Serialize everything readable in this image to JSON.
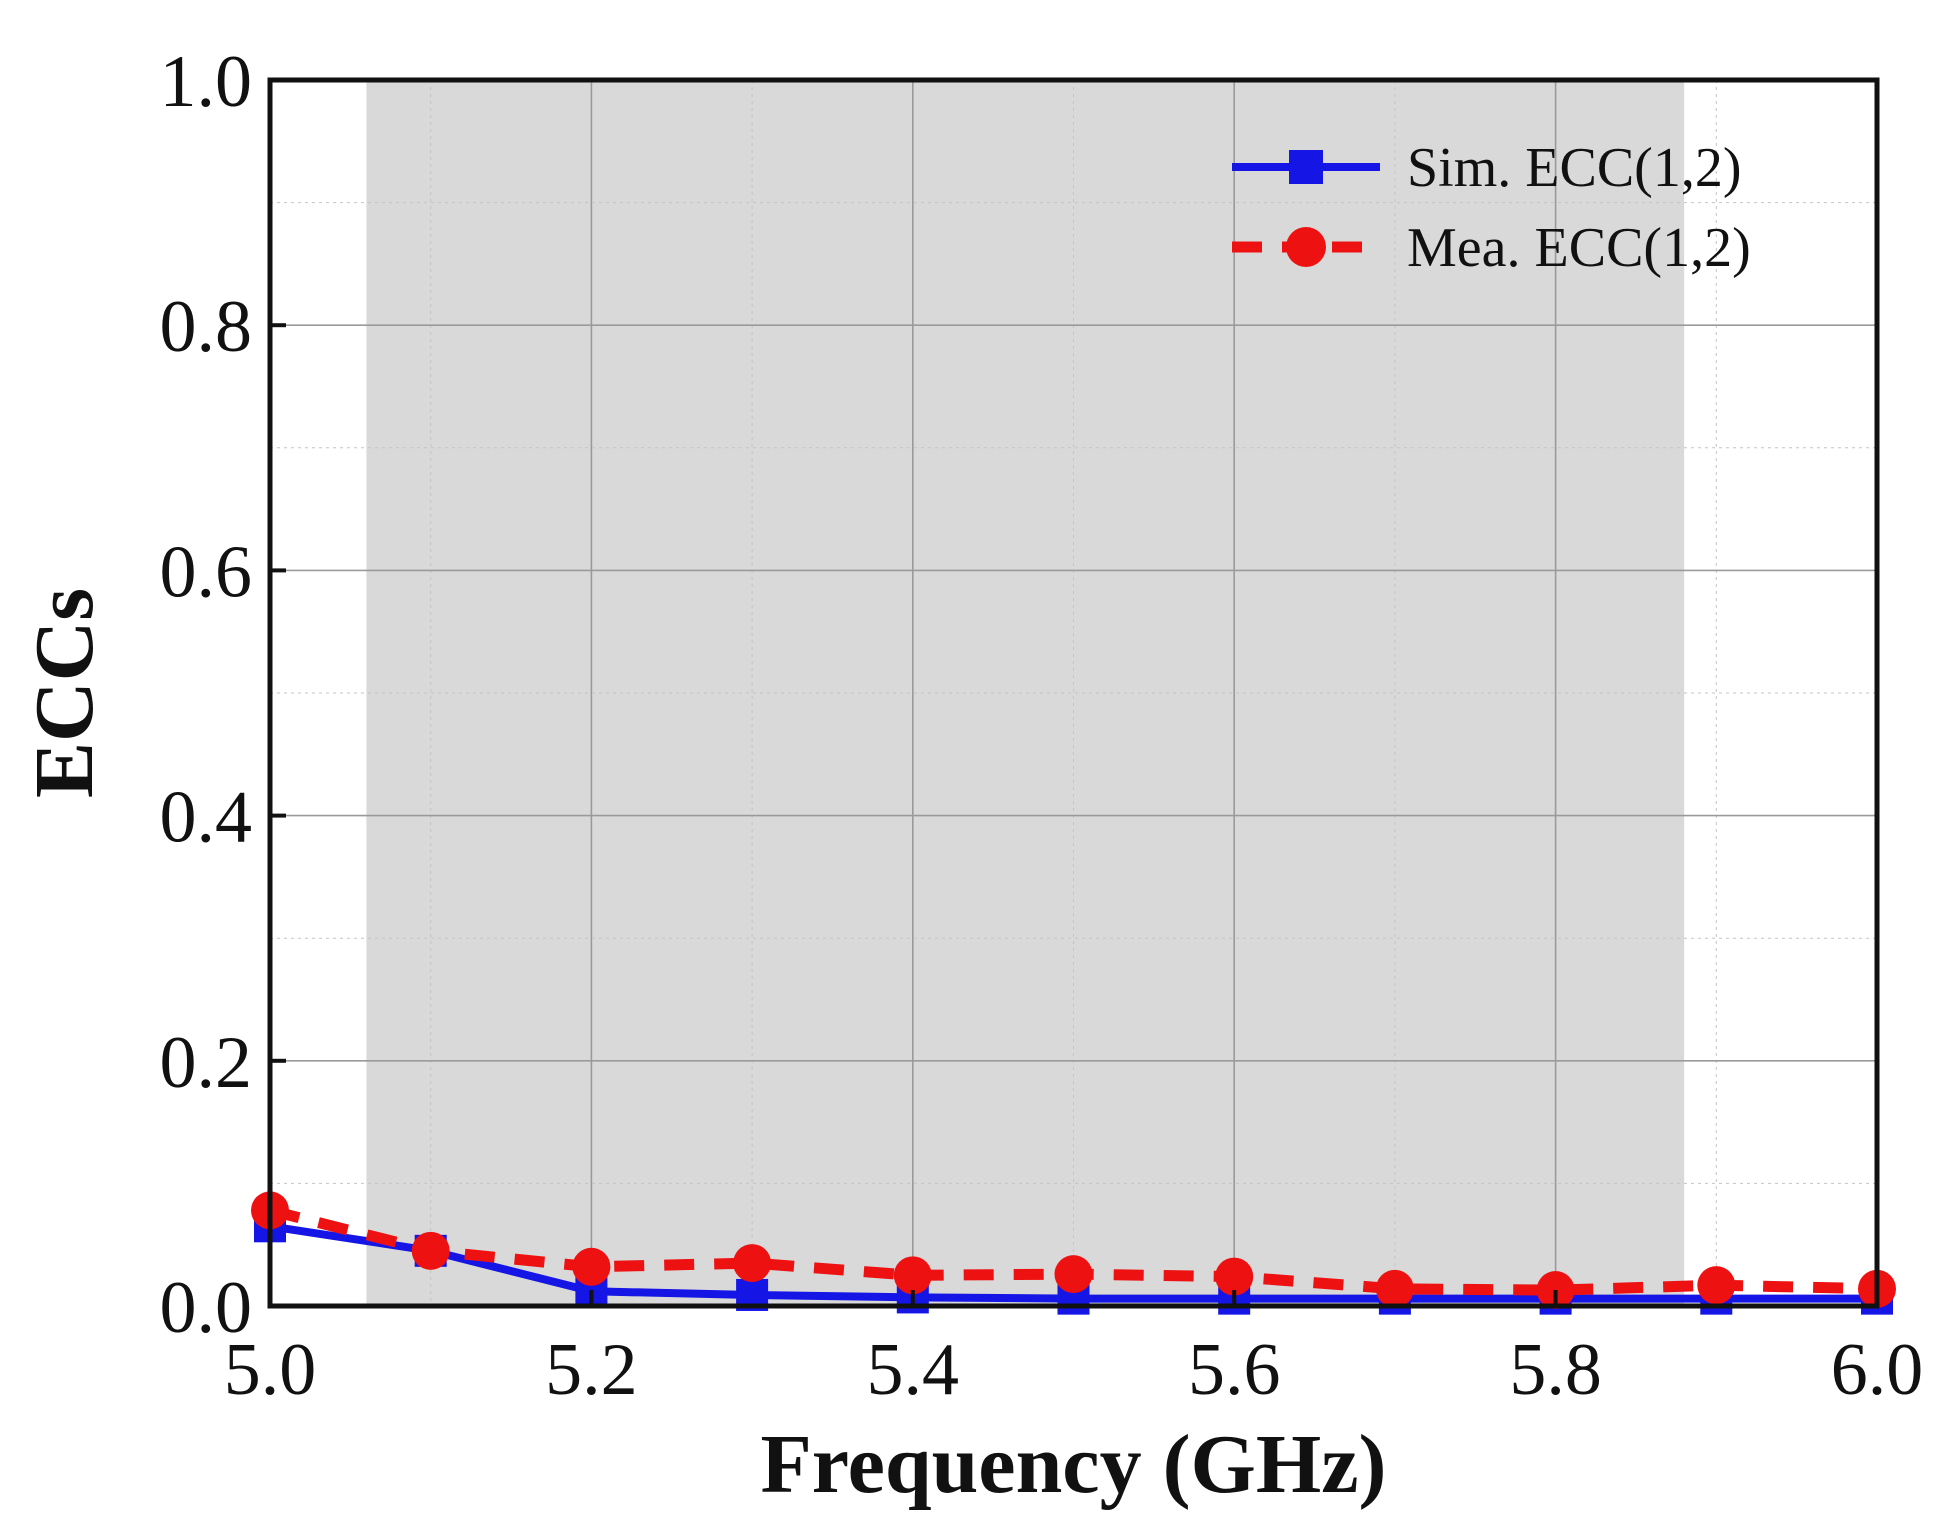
{
  "chart_data": {
    "type": "line",
    "title": "",
    "xlabel": "Frequency (GHz)",
    "ylabel": "ECCs",
    "xlim": [
      5.0,
      6.0
    ],
    "ylim": [
      0.0,
      1.0
    ],
    "xticks": [
      5.0,
      5.2,
      5.4,
      5.6,
      5.8,
      6.0
    ],
    "yticks": [
      0.0,
      0.2,
      0.4,
      0.6,
      0.8,
      1.0
    ],
    "xtick_labels": [
      "5.0",
      "5.2",
      "5.4",
      "5.6",
      "5.8",
      "6.0"
    ],
    "ytick_labels": [
      "0.0",
      "0.2",
      "0.4",
      "0.6",
      "0.8",
      "1.0"
    ],
    "grid": true,
    "legend_position": "top-right",
    "highlight_band": {
      "x_start": 5.06,
      "x_end": 5.88,
      "color": "#d9d9d9"
    },
    "x": [
      5.0,
      5.1,
      5.2,
      5.3,
      5.4,
      5.5,
      5.6,
      5.7,
      5.8,
      5.9,
      6.0
    ],
    "series": [
      {
        "name": "Sim. ECC(1,2)",
        "color": "#1515e6",
        "line_style": "solid",
        "marker": "square",
        "values": [
          0.065,
          0.045,
          0.012,
          0.009,
          0.007,
          0.006,
          0.006,
          0.006,
          0.006,
          0.006,
          0.006
        ]
      },
      {
        "name": "Mea. ECC(1,2)",
        "color": "#ee1111",
        "line_style": "dashed",
        "marker": "circle",
        "values": [
          0.078,
          0.045,
          0.032,
          0.035,
          0.025,
          0.026,
          0.024,
          0.014,
          0.013,
          0.017,
          0.014
        ]
      }
    ]
  }
}
